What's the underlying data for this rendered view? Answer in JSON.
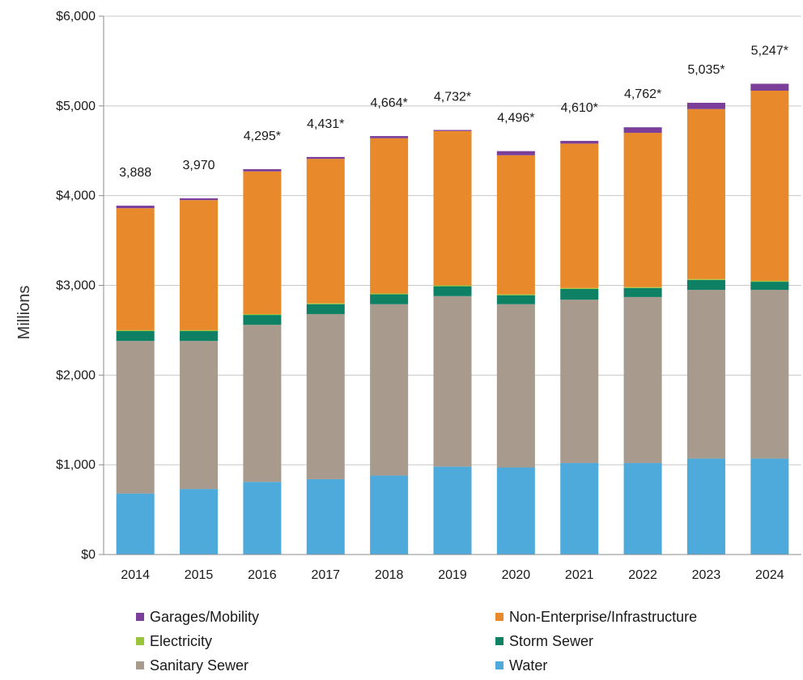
{
  "chart_data": {
    "type": "bar",
    "stacked": true,
    "title": "",
    "xlabel": "",
    "ylabel": "Millions",
    "ylim": [
      0,
      6000
    ],
    "yticks": [
      "$0",
      "$1,000",
      "$2,000",
      "$3,000",
      "$4,000",
      "$5,000",
      "$6,000"
    ],
    "ytick_values": [
      0,
      1000,
      2000,
      3000,
      4000,
      5000,
      6000
    ],
    "grid": true,
    "legend_position": "bottom",
    "categories": [
      "2014",
      "2015",
      "2016",
      "2017",
      "2018",
      "2019",
      "2020",
      "2021",
      "2022",
      "2023",
      "2024"
    ],
    "totals_labels": [
      "3,888",
      "3,970",
      "4,295*",
      "4,431*",
      "4,664*",
      "4,732*",
      "4,496*",
      "4,610*",
      "4,762*",
      "5,035*",
      "5,247*"
    ],
    "totals": [
      3888,
      3970,
      4295,
      4431,
      4664,
      4732,
      4496,
      4610,
      4762,
      5035,
      5247
    ],
    "series": [
      {
        "name": "Water",
        "color": "#4eaadb",
        "values": [
          680,
          730,
          810,
          840,
          880,
          980,
          970,
          1020,
          1020,
          1070,
          1070
        ]
      },
      {
        "name": "Sanitary Sewer",
        "color": "#a89a8c",
        "values": [
          1700,
          1650,
          1750,
          1840,
          1910,
          1900,
          1820,
          1820,
          1850,
          1880,
          1880
        ]
      },
      {
        "name": "Storm Sewer",
        "color": "#0e8064",
        "values": [
          110,
          110,
          110,
          110,
          110,
          110,
          100,
          120,
          100,
          110,
          90
        ]
      },
      {
        "name": "Electricity",
        "color": "#9ac43c",
        "values": [
          10,
          10,
          10,
          10,
          10,
          10,
          10,
          10,
          10,
          10,
          10
        ]
      },
      {
        "name": "Non-Enterprise/Infrastructure",
        "color": "#e8892b",
        "values": [
          1360,
          1450,
          1590,
          1610,
          1730,
          1720,
          1550,
          1610,
          1720,
          1895,
          2120
        ]
      },
      {
        "name": "Garages/Mobility",
        "color": "#7b3f9a",
        "values": [
          28,
          20,
          25,
          21,
          24,
          12,
          46,
          30,
          62,
          70,
          77
        ]
      }
    ],
    "legend_order": [
      "Garages/Mobility",
      "Non-Enterprise/Infrastructure",
      "Electricity",
      "Storm Sewer",
      "Sanitary Sewer",
      "Water"
    ]
  }
}
